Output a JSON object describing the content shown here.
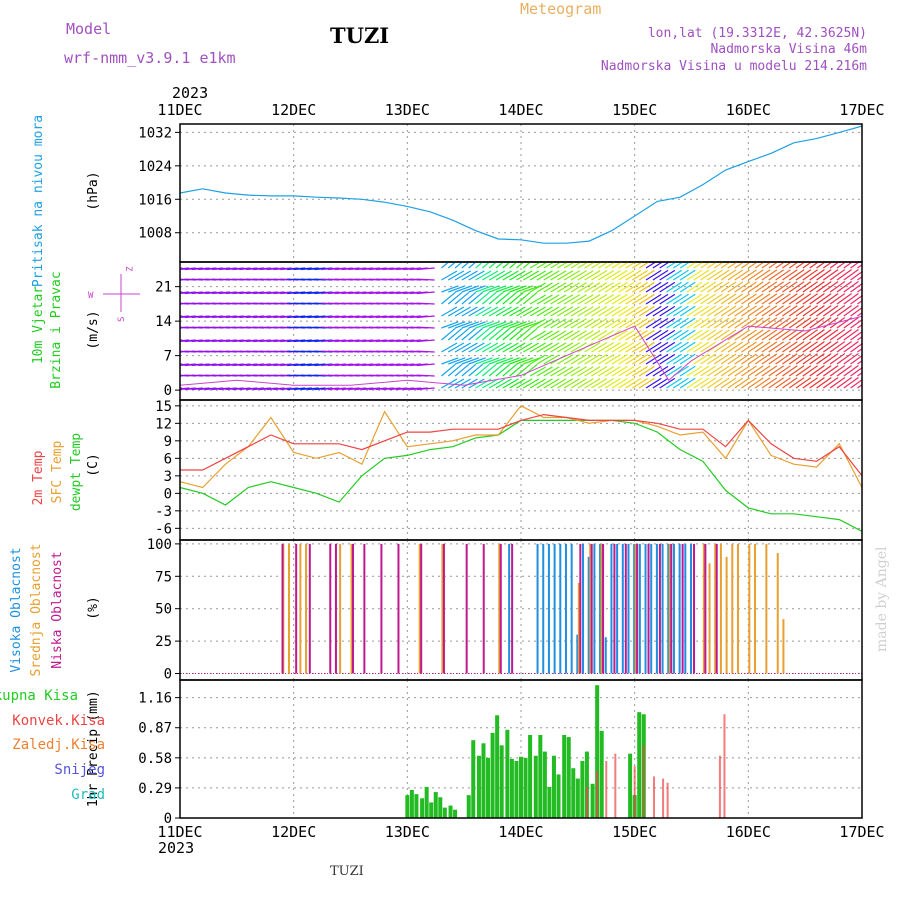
{
  "header": {
    "model_label": "Model",
    "model_name": "wrf-nmm_v3.9.1 e1km",
    "station": "TUZI",
    "title": "Meteogram",
    "coords": "lon,lat (19.3312E, 42.3625N)",
    "elevation": "Nadmorska Visina 46m",
    "model_elevation": "Nadmorska Visina u modelu 214.216m"
  },
  "footer": {
    "station": "TUZI",
    "credit": "made by Angel"
  },
  "time_axis": {
    "year": "2023",
    "ticks": [
      "11DEC",
      "12DEC",
      "13DEC",
      "14DEC",
      "15DEC",
      "16DEC",
      "17DEC"
    ]
  },
  "colors": {
    "pressure": "#1ea0e6",
    "temp_2m": "#ee4444",
    "temp_sfc": "#e8a030",
    "dewpoint": "#22cc22",
    "cloud_high": "#1e90e0",
    "cloud_mid": "#e8a030",
    "cloud_low": "#c01890",
    "precip_total": "#22bb22",
    "precip_conv": "#ee4444",
    "precip_frz": "#f08030",
    "precip_snow": "#5555dd",
    "precip_hail": "#22bbbb",
    "wind_mag": "#cc44cc",
    "model_text": "#a050c0",
    "title_text": "#e8b060"
  },
  "chart_data": [
    {
      "type": "line",
      "panel": "pressure",
      "ylabel_title": "Pritisak na nivou mora",
      "ylabel_unit": "(hPa)",
      "yticks": [
        "1008",
        "1016",
        "1024",
        "1032"
      ],
      "ylim": [
        1001,
        1034
      ],
      "grid": true,
      "series": [
        {
          "x": [
            0,
            0.2,
            0.4,
            0.6,
            0.8,
            1.0,
            1.2,
            1.4,
            1.6,
            1.8,
            2.0,
            2.2,
            2.4,
            2.6,
            2.8,
            3.0,
            3.2,
            3.4,
            3.6,
            3.8,
            4.0,
            4.2,
            4.4,
            4.6,
            4.8,
            5.0,
            5.2,
            5.4,
            5.6,
            5.8,
            6.0
          ],
          "values": [
            1017.5,
            1018.5,
            1017.5,
            1017,
            1016.8,
            1016.8,
            1016.5,
            1016.3,
            1016,
            1015.3,
            1014.3,
            1013,
            1011,
            1008.5,
            1006.5,
            1006.3,
            1005.5,
            1005.5,
            1006,
            1008.5,
            1012,
            1015.5,
            1016.5,
            1019.5,
            1023,
            1025,
            1027,
            1029.5,
            1030.5,
            1032,
            1033.5
          ]
        }
      ]
    },
    {
      "type": "scatter",
      "panel": "wind",
      "ylabel_title": "10m Vjetar",
      "ylabel_sub": "Brzina i Pravac",
      "ylabel_unit": "(m/s)",
      "compass_w": "W",
      "compass_z": "Z",
      "compass_s": "S",
      "yticks": [
        "0",
        "7",
        "14",
        "21"
      ],
      "ylim": [
        -2,
        26
      ],
      "grid": true,
      "series": [
        {
          "name": "speed",
          "x": [
            0,
            0.5,
            1.0,
            1.5,
            2.0,
            2.5,
            3.0,
            3.5,
            4.0,
            4.3,
            4.5,
            5.0,
            5.5,
            6.0
          ],
          "values": [
            1,
            2,
            1,
            1,
            2,
            1,
            3,
            8,
            13,
            2,
            6,
            13,
            12,
            15
          ]
        }
      ]
    },
    {
      "type": "line",
      "panel": "temperature",
      "ylabel_title": "2m Temp",
      "ylabel_sub": "SFC Temp",
      "ylabel_sub2": "dewpt Temp",
      "ylabel_unit": "(C)",
      "yticks": [
        "-6",
        "-3",
        "0",
        "3",
        "6",
        "9",
        "12",
        "15"
      ],
      "ylim": [
        -8,
        16
      ],
      "grid": true,
      "series": [
        {
          "name": "2m Temp",
          "x": [
            0,
            0.2,
            0.4,
            0.6,
            0.8,
            1.0,
            1.2,
            1.4,
            1.6,
            1.8,
            2.0,
            2.2,
            2.4,
            2.6,
            2.8,
            3.0,
            3.2,
            3.4,
            3.6,
            3.8,
            4.0,
            4.2,
            4.4,
            4.6,
            4.8,
            5.0,
            5.2,
            5.4,
            5.6,
            5.8,
            6.0
          ],
          "values": [
            4,
            4,
            6,
            8,
            10,
            8.5,
            8.5,
            8.5,
            7.5,
            9,
            10.5,
            10.5,
            11,
            11,
            11,
            12.5,
            13.5,
            13,
            12.5,
            12.5,
            12.5,
            12,
            11,
            11,
            8,
            12.5,
            8.5,
            6,
            5.5,
            8,
            3
          ]
        },
        {
          "name": "SFC Temp",
          "x": [
            0,
            0.2,
            0.4,
            0.6,
            0.8,
            1.0,
            1.2,
            1.4,
            1.6,
            1.8,
            2.0,
            2.2,
            2.4,
            2.6,
            2.8,
            3.0,
            3.2,
            3.4,
            3.6,
            3.8,
            4.0,
            4.2,
            4.4,
            4.6,
            4.8,
            5.0,
            5.2,
            5.4,
            5.6,
            5.8,
            6.0
          ],
          "values": [
            2,
            1,
            5,
            8,
            13,
            7,
            6,
            7,
            5,
            14,
            8,
            8.5,
            9,
            10,
            10,
            15,
            13,
            13,
            12,
            12.5,
            12.5,
            11.5,
            10,
            10.5,
            6,
            12.5,
            6.5,
            5,
            4.5,
            8.5,
            1
          ]
        },
        {
          "name": "dewpt Temp",
          "x": [
            0,
            0.2,
            0.4,
            0.6,
            0.8,
            1.0,
            1.2,
            1.4,
            1.6,
            1.8,
            2.0,
            2.2,
            2.4,
            2.6,
            2.8,
            3.0,
            3.2,
            3.4,
            3.6,
            3.8,
            4.0,
            4.2,
            4.4,
            4.6,
            4.8,
            5.0,
            5.2,
            5.4,
            5.6,
            5.8,
            6.0
          ],
          "values": [
            1,
            0,
            -2,
            1,
            2,
            1,
            0,
            -1.5,
            3,
            6,
            6.5,
            7.5,
            8,
            9.5,
            10,
            12.5,
            12.5,
            12.5,
            12.5,
            12.5,
            12,
            10.5,
            7.5,
            5.5,
            0.5,
            -2.5,
            -3.5,
            -3.5,
            -4,
            -4.5,
            -6.5
          ]
        }
      ]
    },
    {
      "type": "bar",
      "panel": "clouds",
      "ylabel_title": "Visoka Oblacnost",
      "ylabel_sub": "Srednja Oblacnost",
      "ylabel_sub2": "Niska Oblacnost",
      "ylabel_unit": "(%)",
      "yticks": [
        "0",
        "25",
        "50",
        "75",
        "100"
      ],
      "ylim": [
        -5,
        103
      ],
      "grid": true,
      "series": [
        {
          "name": "Visoka Oblacnost",
          "x": [
            2.9,
            3.15,
            3.2,
            3.25,
            3.3,
            3.35,
            3.4,
            3.45,
            3.5,
            3.55,
            3.6,
            3.65,
            3.7,
            3.75,
            3.8,
            3.85,
            3.9,
            3.95,
            4.0,
            4.05,
            4.1,
            4.15,
            4.2,
            4.25,
            4.3,
            4.35,
            4.4,
            4.45,
            4.5
          ],
          "values": [
            100,
            100,
            100,
            100,
            100,
            100,
            100,
            100,
            30,
            100,
            90,
            100,
            100,
            28,
            100,
            100,
            100,
            100,
            100,
            100,
            100,
            100,
            100,
            100,
            100,
            100,
            100,
            100,
            100
          ]
        },
        {
          "name": "Srednja Oblacnost",
          "x": [
            0.9,
            0.95,
            1.05,
            1.1,
            1.4,
            1.5,
            2.1,
            2.3,
            2.8,
            3.5,
            3.6,
            3.7,
            4.0,
            4.3,
            4.6,
            4.65,
            4.7,
            4.75,
            4.8,
            4.85,
            4.9,
            5.0,
            5.05,
            5.15,
            5.25,
            5.3
          ],
          "values": [
            100,
            100,
            100,
            100,
            100,
            100,
            100,
            100,
            100,
            70,
            100,
            100,
            100,
            100,
            100,
            85,
            100,
            100,
            90,
            100,
            100,
            100,
            100,
            100,
            93,
            42
          ]
        },
        {
          "name": "Niska Oblacnost",
          "x": [
            0.88,
            1.0,
            1.12,
            1.3,
            1.35,
            1.5,
            1.6,
            1.75,
            1.9,
            2.1,
            2.3,
            2.5,
            2.65,
            2.8,
            2.9,
            3.5,
            3.6,
            3.7,
            3.8,
            3.9,
            4.0,
            4.1,
            4.2,
            4.3,
            4.4,
            4.5,
            4.6,
            4.7
          ],
          "values": [
            100,
            100,
            100,
            100,
            100,
            100,
            100,
            100,
            100,
            100,
            100,
            100,
            100,
            100,
            100,
            100,
            100,
            100,
            100,
            100,
            100,
            100,
            100,
            100,
            100,
            100,
            100,
            100
          ]
        }
      ]
    },
    {
      "type": "bar",
      "panel": "precip",
      "ylabel_title": "1hr Precip",
      "ylabel_unit": "(mm)",
      "yticks": [
        "0",
        "0.29",
        "0.58",
        "0.87",
        "1.16"
      ],
      "ylim": [
        0,
        1.33
      ],
      "grid": true,
      "legend": [
        "Ukupna Kisa",
        "Konvek.Kisa",
        "Zaledj.Kisa",
        "Snijeg",
        "Grad"
      ],
      "series": [
        {
          "name": "Ukupna Kisa",
          "x": [
            2.0,
            2.04,
            2.08,
            2.13,
            2.17,
            2.21,
            2.25,
            2.29,
            2.33,
            2.38,
            2.42,
            2.46,
            2.5,
            2.54,
            2.58,
            2.63,
            2.67,
            2.71,
            2.75,
            2.79,
            2.83,
            2.88,
            2.92,
            2.96,
            3.0,
            3.04,
            3.08,
            3.13,
            3.17,
            3.21,
            3.25,
            3.29,
            3.33,
            3.38,
            3.42,
            3.46,
            3.5,
            3.54,
            3.58,
            3.63,
            3.67,
            3.71,
            3.75,
            3.79,
            3.83,
            3.88,
            3.92,
            3.96,
            4.0,
            4.04,
            4.08
          ],
          "values": [
            0.22,
            0.27,
            0.23,
            0.19,
            0.3,
            0.15,
            0.25,
            0.2,
            0.1,
            0.12,
            0.08,
            0.0,
            0.0,
            0.22,
            0.75,
            0.6,
            0.72,
            0.58,
            0.82,
            0.99,
            0.7,
            0.85,
            0.57,
            0.55,
            0.59,
            0.58,
            0.8,
            0.6,
            0.8,
            0.64,
            0.3,
            0.6,
            0.42,
            0.8,
            0.78,
            0.48,
            0.38,
            0.55,
            0.64,
            0.33,
            1.28,
            0.84,
            0.0,
            0.0,
            0.0,
            0.0,
            0.0,
            0.62,
            0.22,
            1.02,
            1.0
          ]
        },
        {
          "name": "Konvek.Kisa",
          "x": [
            3.58,
            3.67,
            3.75,
            3.83,
            4.0,
            4.08,
            4.17,
            4.25,
            4.29,
            4.75,
            4.79
          ],
          "values": [
            0.3,
            0.45,
            0.55,
            0.62,
            0.5,
            0.7,
            0.4,
            0.38,
            0.34,
            0.6,
            1.0
          ]
        }
      ]
    }
  ]
}
